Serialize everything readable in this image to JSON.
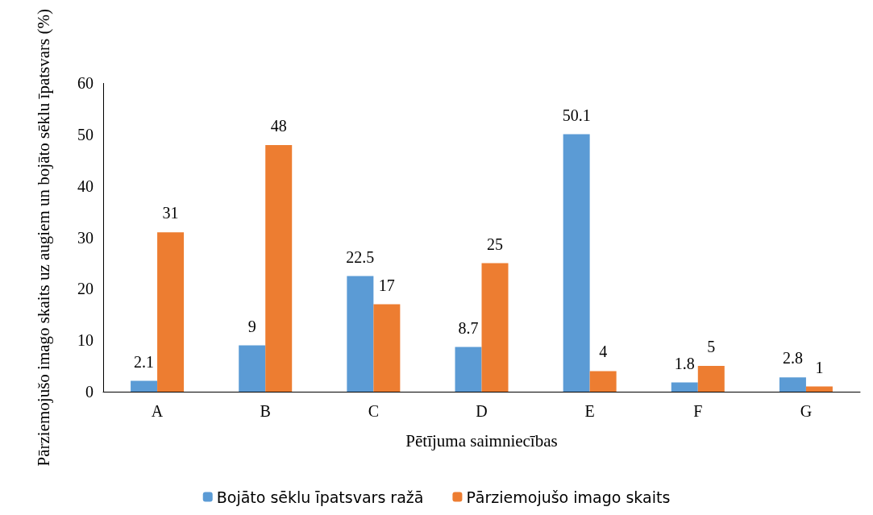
{
  "chart_data": {
    "type": "bar",
    "xlabel": "Pētījuma saimniecības",
    "ylabel": "Pārziemojušo imago skaits uz augiem un bojāto sēklu īpatsvars (%)",
    "categories": [
      "A",
      "B",
      "C",
      "D",
      "E",
      "F",
      "G"
    ],
    "series": [
      {
        "name": "Bojāto sēklu īpatsvars ražā",
        "color": "#5b9bd5",
        "values": [
          2.1,
          9,
          22.5,
          8.7,
          50.1,
          1.8,
          2.8
        ]
      },
      {
        "name": "Pārziemojušo imago skaits",
        "color": "#ed7d31",
        "values": [
          31,
          48,
          17,
          25,
          4,
          5,
          1
        ]
      }
    ],
    "ylim": [
      0,
      60
    ],
    "yticks": [
      0,
      10,
      20,
      30,
      40,
      50,
      60
    ],
    "data_labels": true,
    "grid": false,
    "legend": "bottom"
  }
}
